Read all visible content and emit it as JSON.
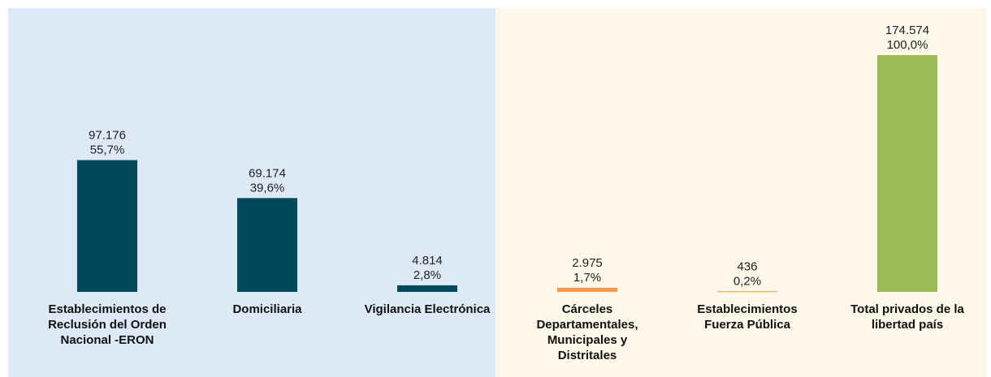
{
  "chart_data": {
    "type": "bar",
    "categories": [
      "Establecimientos de Reclusión del Orden Nacional -ERON",
      "Domiciliaria",
      "Vigilancia Electrónica",
      "Cárceles Departamentales, Municipales y Distritales",
      "Establecimientos Fuerza Pública",
      "Total privados de la libertad país"
    ],
    "values": [
      97176,
      69174,
      4814,
      2975,
      436,
      174574
    ],
    "value_labels": [
      "97.176",
      "69.174",
      "4.814",
      "2.975",
      "436",
      "174.574"
    ],
    "percents": [
      55.7,
      39.6,
      2.8,
      1.7,
      0.2,
      100.0
    ],
    "percent_labels": [
      "55,7%",
      "39,6%",
      "2,8%",
      "1,7%",
      "0,2%",
      "100,0%"
    ],
    "colors": [
      "#004a5a",
      "#004a5a",
      "#004a5a",
      "#f79646",
      "#f79646",
      "#9bbb59"
    ],
    "ylim": [
      0,
      175000
    ]
  }
}
